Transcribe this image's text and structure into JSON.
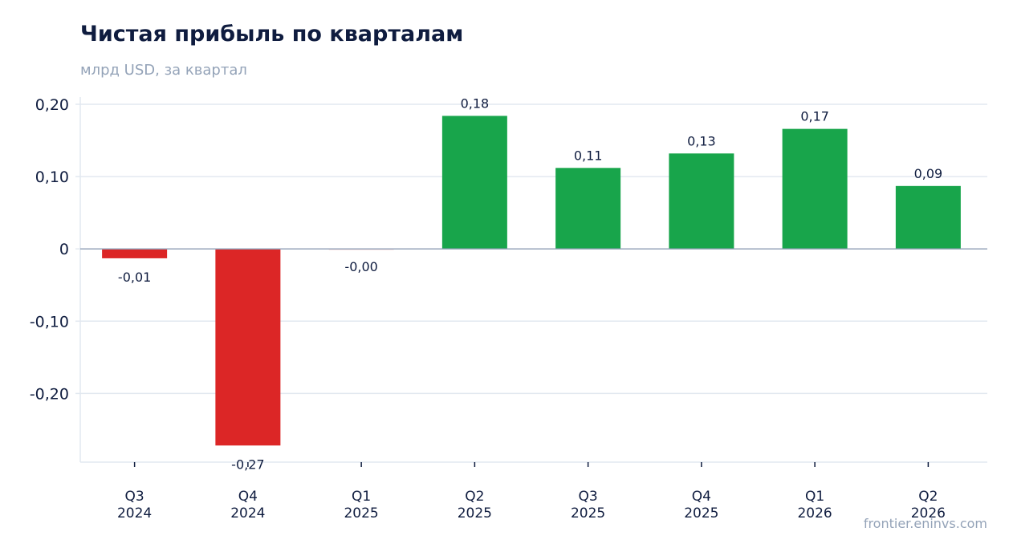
{
  "header": {
    "title": "Чистая прибыль по кварталам",
    "subtitle": "млрд USD, за квартал"
  },
  "footer": {
    "source": "frontier.eninvs.com"
  },
  "chart_data": {
    "type": "bar",
    "title": "Чистая прибыль по кварталам",
    "subtitle": "млрд USD, за квартал",
    "categories": [
      [
        "Q3",
        "2024"
      ],
      [
        "Q4",
        "2024"
      ],
      [
        "Q1",
        "2025"
      ],
      [
        "Q2",
        "2025"
      ],
      [
        "Q3",
        "2025"
      ],
      [
        "Q4",
        "2025"
      ],
      [
        "Q1",
        "2026"
      ],
      [
        "Q2",
        "2026"
      ]
    ],
    "values": [
      -0.013,
      -0.272,
      -0.001,
      0.184,
      0.112,
      0.132,
      0.166,
      0.087
    ],
    "data_labels": [
      "-0,01",
      "-0,27",
      "-0,00",
      "0,18",
      "0,11",
      "0,13",
      "0,17",
      "0,09"
    ],
    "yticks": [
      0.2,
      0.1,
      0,
      -0.1,
      -0.2
    ],
    "ytick_labels": [
      "0,20",
      "0,10",
      "0",
      "-0,10",
      "-0,20"
    ],
    "ylim": [
      -0.295,
      0.21
    ],
    "xlabel": "",
    "ylabel": "",
    "grid": true,
    "colors": {
      "positive": "#18a54b",
      "negative": "#dc2626",
      "zero_line": "#94a3b8",
      "grid": "#e2e8f0",
      "text": "#0f1c3f"
    }
  }
}
